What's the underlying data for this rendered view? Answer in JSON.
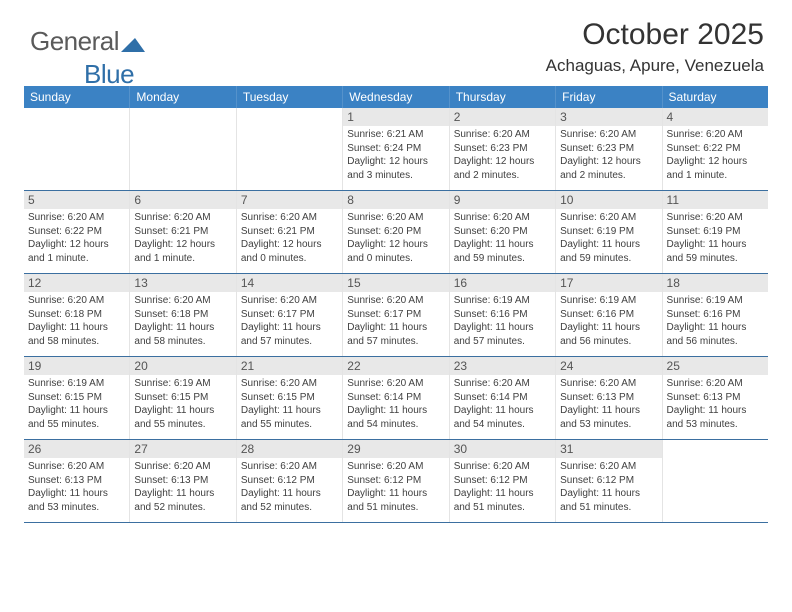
{
  "logo": {
    "text1": "General",
    "text2": "Blue"
  },
  "title": "October 2025",
  "location": "Achaguas, Apure, Venezuela",
  "colors": {
    "header_bg": "#3b82c4",
    "header_text": "#ffffff",
    "daynum_bg": "#e8e8e8",
    "border": "#3b6fa0",
    "logo_gray": "#5a5a5a",
    "logo_blue": "#2f6fa8",
    "body_text": "#404040"
  },
  "weekdays": [
    "Sunday",
    "Monday",
    "Tuesday",
    "Wednesday",
    "Thursday",
    "Friday",
    "Saturday"
  ],
  "weeks": [
    [
      {
        "n": "",
        "sr": "",
        "ss": "",
        "dl": ""
      },
      {
        "n": "",
        "sr": "",
        "ss": "",
        "dl": ""
      },
      {
        "n": "",
        "sr": "",
        "ss": "",
        "dl": ""
      },
      {
        "n": "1",
        "sr": "Sunrise: 6:21 AM",
        "ss": "Sunset: 6:24 PM",
        "dl": "Daylight: 12 hours and 3 minutes."
      },
      {
        "n": "2",
        "sr": "Sunrise: 6:20 AM",
        "ss": "Sunset: 6:23 PM",
        "dl": "Daylight: 12 hours and 2 minutes."
      },
      {
        "n": "3",
        "sr": "Sunrise: 6:20 AM",
        "ss": "Sunset: 6:23 PM",
        "dl": "Daylight: 12 hours and 2 minutes."
      },
      {
        "n": "4",
        "sr": "Sunrise: 6:20 AM",
        "ss": "Sunset: 6:22 PM",
        "dl": "Daylight: 12 hours and 1 minute."
      }
    ],
    [
      {
        "n": "5",
        "sr": "Sunrise: 6:20 AM",
        "ss": "Sunset: 6:22 PM",
        "dl": "Daylight: 12 hours and 1 minute."
      },
      {
        "n": "6",
        "sr": "Sunrise: 6:20 AM",
        "ss": "Sunset: 6:21 PM",
        "dl": "Daylight: 12 hours and 1 minute."
      },
      {
        "n": "7",
        "sr": "Sunrise: 6:20 AM",
        "ss": "Sunset: 6:21 PM",
        "dl": "Daylight: 12 hours and 0 minutes."
      },
      {
        "n": "8",
        "sr": "Sunrise: 6:20 AM",
        "ss": "Sunset: 6:20 PM",
        "dl": "Daylight: 12 hours and 0 minutes."
      },
      {
        "n": "9",
        "sr": "Sunrise: 6:20 AM",
        "ss": "Sunset: 6:20 PM",
        "dl": "Daylight: 11 hours and 59 minutes."
      },
      {
        "n": "10",
        "sr": "Sunrise: 6:20 AM",
        "ss": "Sunset: 6:19 PM",
        "dl": "Daylight: 11 hours and 59 minutes."
      },
      {
        "n": "11",
        "sr": "Sunrise: 6:20 AM",
        "ss": "Sunset: 6:19 PM",
        "dl": "Daylight: 11 hours and 59 minutes."
      }
    ],
    [
      {
        "n": "12",
        "sr": "Sunrise: 6:20 AM",
        "ss": "Sunset: 6:18 PM",
        "dl": "Daylight: 11 hours and 58 minutes."
      },
      {
        "n": "13",
        "sr": "Sunrise: 6:20 AM",
        "ss": "Sunset: 6:18 PM",
        "dl": "Daylight: 11 hours and 58 minutes."
      },
      {
        "n": "14",
        "sr": "Sunrise: 6:20 AM",
        "ss": "Sunset: 6:17 PM",
        "dl": "Daylight: 11 hours and 57 minutes."
      },
      {
        "n": "15",
        "sr": "Sunrise: 6:20 AM",
        "ss": "Sunset: 6:17 PM",
        "dl": "Daylight: 11 hours and 57 minutes."
      },
      {
        "n": "16",
        "sr": "Sunrise: 6:19 AM",
        "ss": "Sunset: 6:16 PM",
        "dl": "Daylight: 11 hours and 57 minutes."
      },
      {
        "n": "17",
        "sr": "Sunrise: 6:19 AM",
        "ss": "Sunset: 6:16 PM",
        "dl": "Daylight: 11 hours and 56 minutes."
      },
      {
        "n": "18",
        "sr": "Sunrise: 6:19 AM",
        "ss": "Sunset: 6:16 PM",
        "dl": "Daylight: 11 hours and 56 minutes."
      }
    ],
    [
      {
        "n": "19",
        "sr": "Sunrise: 6:19 AM",
        "ss": "Sunset: 6:15 PM",
        "dl": "Daylight: 11 hours and 55 minutes."
      },
      {
        "n": "20",
        "sr": "Sunrise: 6:19 AM",
        "ss": "Sunset: 6:15 PM",
        "dl": "Daylight: 11 hours and 55 minutes."
      },
      {
        "n": "21",
        "sr": "Sunrise: 6:20 AM",
        "ss": "Sunset: 6:15 PM",
        "dl": "Daylight: 11 hours and 55 minutes."
      },
      {
        "n": "22",
        "sr": "Sunrise: 6:20 AM",
        "ss": "Sunset: 6:14 PM",
        "dl": "Daylight: 11 hours and 54 minutes."
      },
      {
        "n": "23",
        "sr": "Sunrise: 6:20 AM",
        "ss": "Sunset: 6:14 PM",
        "dl": "Daylight: 11 hours and 54 minutes."
      },
      {
        "n": "24",
        "sr": "Sunrise: 6:20 AM",
        "ss": "Sunset: 6:13 PM",
        "dl": "Daylight: 11 hours and 53 minutes."
      },
      {
        "n": "25",
        "sr": "Sunrise: 6:20 AM",
        "ss": "Sunset: 6:13 PM",
        "dl": "Daylight: 11 hours and 53 minutes."
      }
    ],
    [
      {
        "n": "26",
        "sr": "Sunrise: 6:20 AM",
        "ss": "Sunset: 6:13 PM",
        "dl": "Daylight: 11 hours and 53 minutes."
      },
      {
        "n": "27",
        "sr": "Sunrise: 6:20 AM",
        "ss": "Sunset: 6:13 PM",
        "dl": "Daylight: 11 hours and 52 minutes."
      },
      {
        "n": "28",
        "sr": "Sunrise: 6:20 AM",
        "ss": "Sunset: 6:12 PM",
        "dl": "Daylight: 11 hours and 52 minutes."
      },
      {
        "n": "29",
        "sr": "Sunrise: 6:20 AM",
        "ss": "Sunset: 6:12 PM",
        "dl": "Daylight: 11 hours and 51 minutes."
      },
      {
        "n": "30",
        "sr": "Sunrise: 6:20 AM",
        "ss": "Sunset: 6:12 PM",
        "dl": "Daylight: 11 hours and 51 minutes."
      },
      {
        "n": "31",
        "sr": "Sunrise: 6:20 AM",
        "ss": "Sunset: 6:12 PM",
        "dl": "Daylight: 11 hours and 51 minutes."
      },
      {
        "n": "",
        "sr": "",
        "ss": "",
        "dl": ""
      }
    ]
  ]
}
